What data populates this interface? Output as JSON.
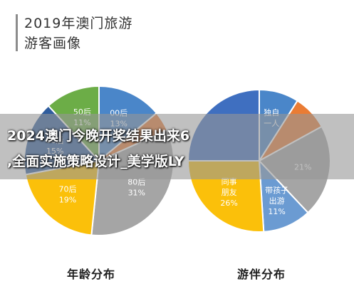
{
  "figure": {
    "title_lines": [
      "2019年澳门旅游",
      "游客画像"
    ]
  },
  "overlay": {
    "headline_lines": [
      "2024澳门今晚开奖结果出来6",
      ",全面实施策略设计_美学版LY"
    ]
  },
  "colors": {
    "background": "#ffffff",
    "overlay": "#969696",
    "headline_text": "#ffffff"
  },
  "chart_data": [
    {
      "type": "pie",
      "title": "年龄分布",
      "slices": [
        {
          "label": "00后",
          "value": 13,
          "value_label": "13%",
          "color": "#4a86c9"
        },
        {
          "label": "",
          "value": 4,
          "value_label": "",
          "color": "#ea7c34"
        },
        {
          "label": "80后",
          "value": 31,
          "value_label": "31%",
          "color": "#a5a5a5"
        },
        {
          "label": "70后",
          "value": 19,
          "value_label": "19%",
          "color": "#fbc00a"
        },
        {
          "label": "60后",
          "value": 15,
          "value_label": "15%",
          "color": "#2f5d9e"
        },
        {
          "label": "50后",
          "value": 11,
          "value_label": "11%",
          "color": "#6cad47"
        }
      ]
    },
    {
      "type": "pie",
      "title": "游伴分布",
      "slices": [
        {
          "label": "独自一人",
          "value": 9,
          "value_label": "",
          "color": "#4a86c9"
        },
        {
          "label": "",
          "value": 8,
          "value_label": "",
          "color": "#ea7c34"
        },
        {
          "label": "",
          "value": 21,
          "value_label": "21%",
          "color": "#a5a5a5"
        },
        {
          "label": "带孩子出游",
          "value": 11,
          "value_label": "11%",
          "color": "#6b9bd2"
        },
        {
          "label": "同事朋友",
          "value": 26,
          "value_label": "26%",
          "color": "#fbc00a"
        },
        {
          "label": "",
          "value": 25,
          "value_label": "",
          "color": "#3f6fc0"
        }
      ]
    }
  ]
}
